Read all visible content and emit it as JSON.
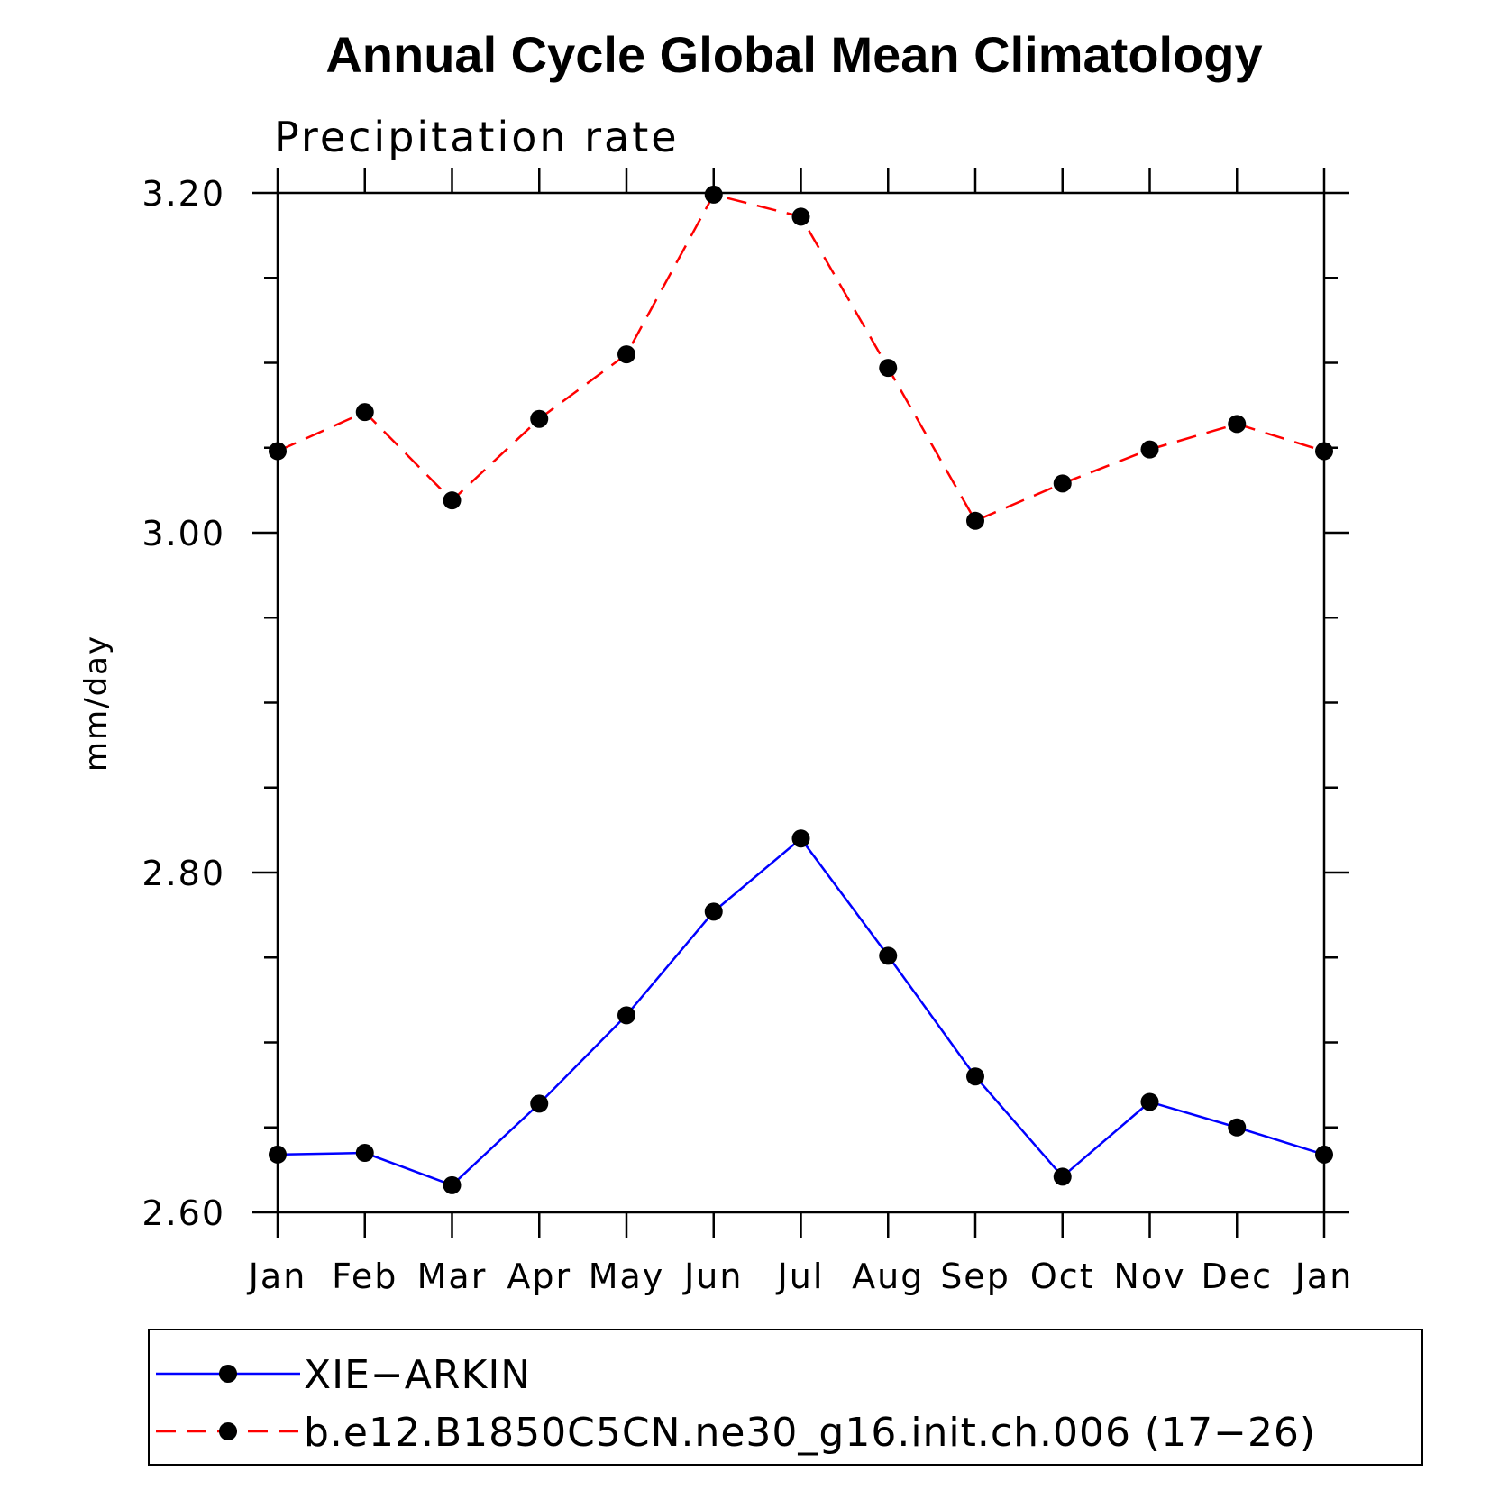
{
  "chart_data": {
    "type": "line",
    "title": "Annual Cycle Global Mean Climatology",
    "subtitle": "Precipitation rate",
    "xlabel": "",
    "ylabel": "mm/day",
    "categories": [
      "Jan",
      "Feb",
      "Mar",
      "Apr",
      "May",
      "Jun",
      "Jul",
      "Aug",
      "Sep",
      "Oct",
      "Nov",
      "Dec",
      "Jan"
    ],
    "ylim": [
      2.6,
      3.2
    ],
    "yticks": [
      2.6,
      2.8,
      3.0,
      3.2
    ],
    "ytick_labels": [
      "2.60",
      "2.80",
      "3.00",
      "3.20"
    ],
    "y_minor_step": 0.05,
    "grid": false,
    "legend_position": "bottom",
    "series": [
      {
        "name": "XIE−ARKIN",
        "color": "#0000ff",
        "dash": "solid",
        "marker": "filled-circle",
        "values": [
          2.634,
          2.635,
          2.616,
          2.664,
          2.716,
          2.777,
          2.82,
          2.751,
          2.68,
          2.621,
          2.665,
          2.65,
          2.634
        ]
      },
      {
        "name": "b.e12.B1850C5CN.ne30_g16.init.ch.006 (17−26)",
        "color": "#ff0000",
        "dash": "dashed",
        "marker": "filled-circle",
        "values": [
          3.048,
          3.071,
          3.019,
          3.067,
          3.105,
          3.199,
          3.186,
          3.097,
          3.007,
          3.029,
          3.049,
          3.064,
          3.048
        ]
      }
    ]
  }
}
